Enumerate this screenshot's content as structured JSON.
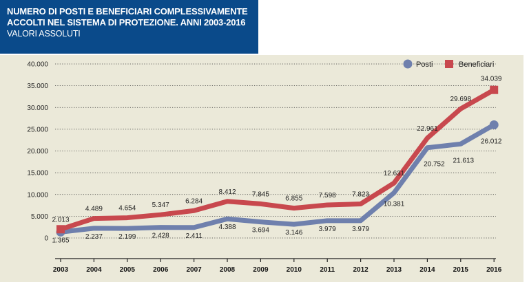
{
  "header": {
    "title_line1": "NUMERO DI POSTI E BENEFICIARI COMPLESSIVAMENTE",
    "title_line2": "ACCOLTI NEL SISTEMA DI PROTEZIONE. ANNI 2003-2016",
    "subtitle": "VALORI ASSOLUTI"
  },
  "colors": {
    "posti": "#6f80ad",
    "beneficiari": "#c8484e",
    "panel": "#ebe9d9",
    "title_bg": "#0a4a8a"
  },
  "chart_data": {
    "type": "line",
    "title": "NUMERO DI POSTI E BENEFICIARI COMPLESSIVAMENTE ACCOLTI NEL SISTEMA DI PROTEZIONE. ANNI 2003-2016",
    "subtitle": "VALORI ASSOLUTI",
    "xlabel": "",
    "ylabel": "",
    "ylim": [
      0,
      40000
    ],
    "grid": true,
    "legend_position": "top-right",
    "categories": [
      "2003",
      "2004",
      "2005",
      "2006",
      "2007",
      "2008",
      "2009",
      "2010",
      "2011",
      "2012",
      "2013",
      "2014",
      "2015",
      "2016"
    ],
    "y_ticks": [
      {
        "value": 0,
        "label": "0"
      },
      {
        "value": 5000,
        "label": "5.000"
      },
      {
        "value": 10000,
        "label": "10.000"
      },
      {
        "value": 15000,
        "label": "15.000"
      },
      {
        "value": 20000,
        "label": "20.000"
      },
      {
        "value": 25000,
        "label": "25.000"
      },
      {
        "value": 30000,
        "label": "30.000"
      },
      {
        "value": 35000,
        "label": "35.000"
      },
      {
        "value": 40000,
        "label": "40.000"
      }
    ],
    "series": [
      {
        "name": "Posti",
        "marker": "circle",
        "values": [
          1365,
          2237,
          2199,
          2428,
          2411,
          4388,
          3694,
          3146,
          3979,
          3979,
          10381,
          20752,
          21613,
          26012
        ],
        "labels": [
          "1.365",
          "2.237",
          "2.199",
          "2.428",
          "2.411",
          "4.388",
          "3.694",
          "3.146",
          "3.979",
          "3.979",
          "10.381",
          "20.752",
          "21.613",
          "26.012"
        ]
      },
      {
        "name": "Beneficiari",
        "marker": "square",
        "values": [
          2013,
          4489,
          4654,
          5347,
          6284,
          8412,
          7845,
          6855,
          7598,
          7823,
          12631,
          22961,
          29698,
          34039
        ],
        "labels": [
          "2.013",
          "4.489",
          "4.654",
          "5.347",
          "6.284",
          "8.412",
          "7.845",
          "6.855",
          "7.598",
          "7.823",
          "12.631",
          "22.961",
          "29.698",
          "34.039"
        ]
      }
    ]
  }
}
